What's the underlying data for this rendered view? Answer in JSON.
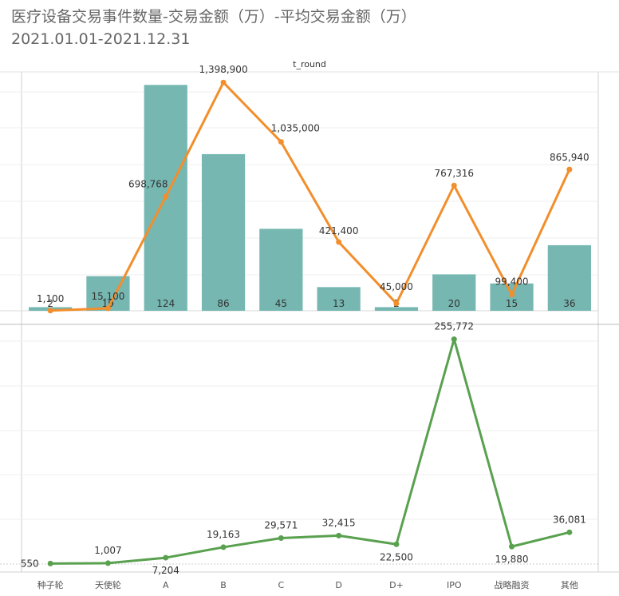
{
  "title": "医疗设备交易事件数量-交易金额（万）-平均交易金额（万）",
  "subtitle": "2021.01.01-2021.12.31",
  "chart_data": [
    {
      "type": "bar+line",
      "header": "t_round",
      "categories": [
        "种子轮",
        "天使轮",
        "A",
        "B",
        "C",
        "D",
        "D+",
        "IPO",
        "战略融资",
        "其他"
      ],
      "series": [
        {
          "type": "bar",
          "color": "#76b7b2",
          "values": [
            2,
            19,
            124,
            86,
            45,
            13,
            2,
            20,
            15,
            36
          ]
        },
        {
          "type": "line",
          "color": "#f28e2b",
          "values": [
            1100,
            15100,
            698768,
            1398900,
            1035000,
            421400,
            45000,
            767316,
            99400,
            865940
          ]
        }
      ],
      "value_labels": {
        "bar": [
          "2",
          "19",
          "124",
          "86",
          "45",
          "13",
          "2",
          "20",
          "15",
          "36"
        ],
        "line": [
          "1,100",
          "15,100",
          "698,768",
          "1,398,900",
          "1,035,000",
          "421,400",
          "45,000",
          "767,316",
          "99,400",
          "865,940"
        ]
      },
      "bar_ylim": [
        0,
        125
      ],
      "line_ylim": [
        0,
        1400000
      ]
    },
    {
      "type": "line",
      "categories": [
        "种子轮",
        "天使轮",
        "A",
        "B",
        "C",
        "D",
        "D+",
        "IPO",
        "战略融资",
        "其他"
      ],
      "series": [
        {
          "color": "#59a14f",
          "values": [
            550,
            1007,
            7204,
            19163,
            29571,
            32415,
            22500,
            255772,
            19880,
            36081
          ]
        }
      ],
      "value_labels": [
        "550",
        "1,007",
        "7,204",
        "19,163",
        "29,571",
        "32,415",
        "22,500",
        "255,772",
        "19,880",
        "36,081"
      ],
      "ylim": [
        0,
        260000
      ]
    }
  ]
}
